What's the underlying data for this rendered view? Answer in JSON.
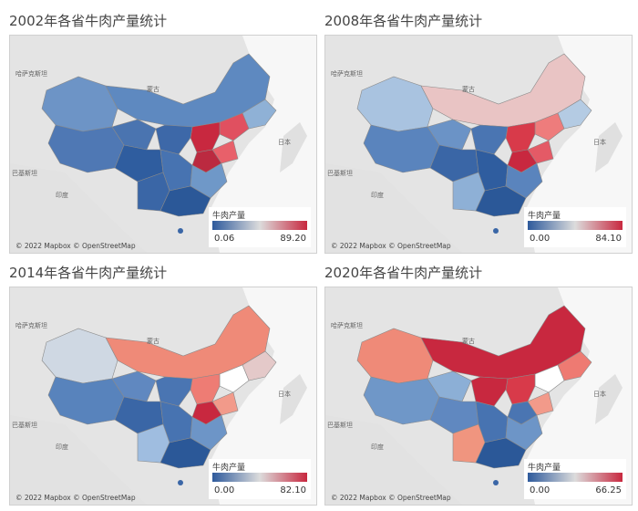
{
  "map_common": {
    "legend_title": "牛肉产量",
    "attribution": "© 2022 Mapbox © OpenStreetMap",
    "place_labels": {
      "kazakhstan": "哈萨克斯坦",
      "mongolia": "蒙古",
      "japan": "日本",
      "pakistan": "巴基斯坦",
      "india": "印度"
    },
    "color_low": "#2e5a9c",
    "color_mid": "#dcdcdc",
    "color_high": "#c8283f"
  },
  "panels": [
    {
      "title": "2002年各省牛肉产量统计",
      "legend_min": "0.06",
      "legend_max": "89.20"
    },
    {
      "title": "2008年各省牛肉产量统计",
      "legend_min": "0.00",
      "legend_max": "84.10"
    },
    {
      "title": "2014年各省牛肉产量统计",
      "legend_min": "0.00",
      "legend_max": "82.10"
    },
    {
      "title": "2020年各省牛肉产量统计",
      "legend_min": "0.00",
      "legend_max": "66.25"
    }
  ]
}
